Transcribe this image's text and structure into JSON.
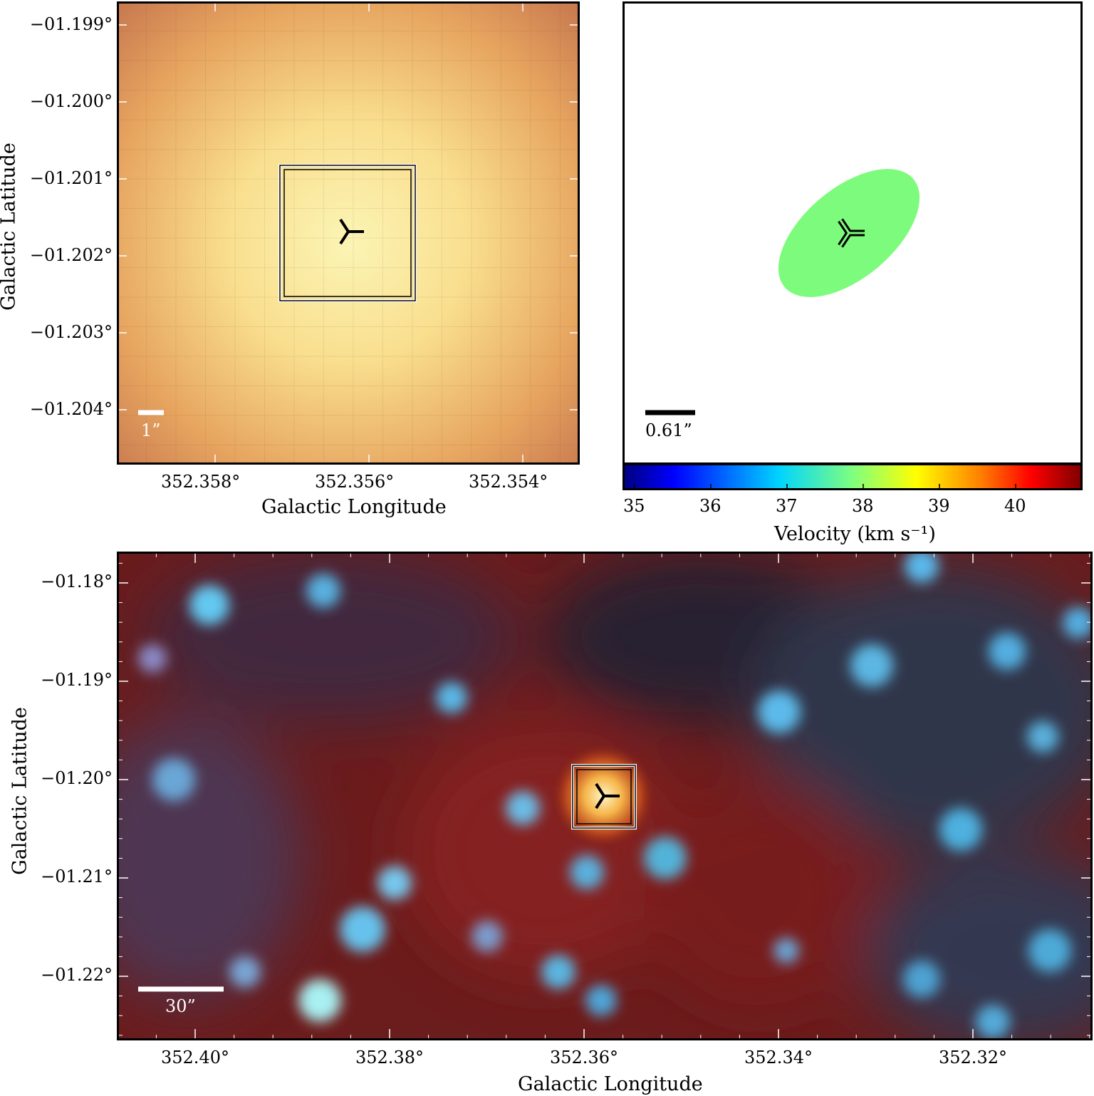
{
  "panels": {
    "top_left": {
      "xlabel": "Galactic Longitude",
      "ylabel": "Galactic Latitude",
      "x_ticks": [
        "352.358°",
        "352.356°",
        "352.354°"
      ],
      "y_ticks": [
        "−01.199°",
        "−01.200°",
        "−01.201°",
        "−01.202°",
        "−01.203°",
        "−01.204°"
      ],
      "scale_bar_label": "1”",
      "map_colors": {
        "edge": "#c4704a",
        "mid": "#e7a55e",
        "core": "#fbf3b0"
      }
    },
    "top_right": {
      "scale_bar_label": "0.61”",
      "ellipse_color": "#7dfb7d",
      "colorbar": {
        "ticks": [
          "35",
          "36",
          "37",
          "38",
          "39",
          "40"
        ],
        "label": "Velocity (km s⁻¹)",
        "colors": [
          "#00007f",
          "#0000ff",
          "#007fff",
          "#00ffff",
          "#7fff7f",
          "#ffff00",
          "#ff7f00",
          "#ff0000",
          "#7f0000"
        ]
      }
    },
    "bottom": {
      "xlabel": "Galactic Longitude",
      "ylabel": "Galactic Latitude",
      "x_ticks": [
        "352.40°",
        "352.38°",
        "352.36°",
        "352.34°",
        "352.32°"
      ],
      "y_ticks": [
        "−01.18°",
        "−01.19°",
        "−01.20°",
        "−01.21°",
        "−01.22°"
      ],
      "scale_bar_label": "30”",
      "map_colors": {
        "background": "#6b1c1c",
        "star": "#5fb8e6",
        "source": "#f6b54a"
      }
    }
  }
}
